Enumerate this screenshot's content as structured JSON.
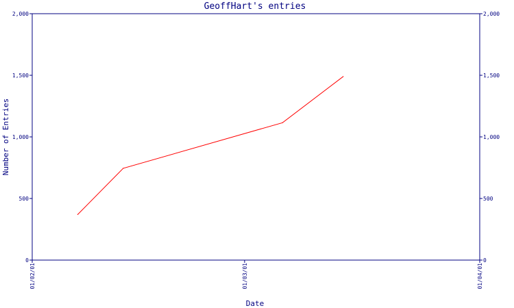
{
  "chart_data": {
    "type": "line",
    "title": "GeoffHart's entries",
    "xlabel": "Date",
    "ylabel": "Number of Entries",
    "ylim": [
      0,
      2000
    ],
    "xlim": [
      "2001-02-01",
      "2001-04-01"
    ],
    "yticks": [
      {
        "value": 0,
        "label": "0"
      },
      {
        "value": 500,
        "label": "500"
      },
      {
        "value": 1000,
        "label": "1,000"
      },
      {
        "value": 1500,
        "label": "1,500"
      },
      {
        "value": 2000,
        "label": "2,000"
      }
    ],
    "xticks": [
      {
        "date": "2001-02-01",
        "label": "01/02/01"
      },
      {
        "date": "2001-03-01",
        "label": "01/03/01"
      },
      {
        "date": "2001-04-01",
        "label": "01/04/01"
      }
    ],
    "series": [
      {
        "color": "#ff0000",
        "points": [
          {
            "date": "2001-02-07",
            "y": 370
          },
          {
            "date": "2001-02-13",
            "y": 745
          },
          {
            "date": "2001-03-06",
            "y": 1115
          },
          {
            "date": "2001-03-14",
            "y": 1490
          }
        ]
      }
    ],
    "grid": false,
    "right_axis_mirrors_left": true
  },
  "colors": {
    "axis": "#000080",
    "line": "#ff0000",
    "background": "#ffffff"
  }
}
